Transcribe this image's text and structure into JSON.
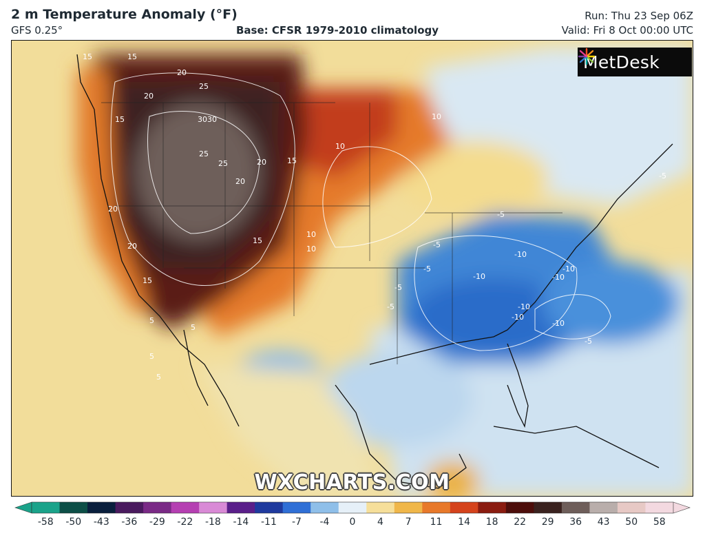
{
  "header": {
    "title": "2 m Temperature Anomaly (°F)",
    "model": "GFS 0.25°",
    "base": "Base: CFSR 1979-2010 climatology",
    "run": "Run: Thu 23 Sep 06Z",
    "valid": "Valid: Fri 8 Oct 00:00 UTC"
  },
  "logo": {
    "text": "MetDesk",
    "icon": "metdesk-burst-icon"
  },
  "watermark": "WXCHARTS.COM",
  "contour_labels": [
    "15",
    "15",
    "20",
    "20",
    "25",
    "3030",
    "25",
    "25",
    "20",
    "20",
    "15",
    "10",
    "10",
    "10",
    "10",
    "15",
    "20",
    "20",
    "15",
    "15",
    "-5",
    "-5",
    "-5",
    "-5",
    "-10",
    "-10",
    "-10",
    "-10",
    "-10",
    "-10",
    "-10",
    "-5",
    "-5",
    "-5",
    "5",
    "5",
    "5",
    "5"
  ],
  "colorbar": {
    "ticks": [
      "-58",
      "-50",
      "-43",
      "-36",
      "-29",
      "-22",
      "-18",
      "-14",
      "-11",
      "-7",
      "-4",
      "0",
      "4",
      "7",
      "11",
      "14",
      "18",
      "22",
      "29",
      "36",
      "43",
      "50",
      "58"
    ],
    "colors": [
      "#1aa38a",
      "#0d4f47",
      "#0a1f3d",
      "#4a1a5e",
      "#7a2a86",
      "#b53fb2",
      "#d98ad6",
      "#5a1f8a",
      "#1f3a9e",
      "#2f6fd6",
      "#8fbfe9",
      "#e6f0f8",
      "#f6df9a",
      "#f0b74a",
      "#e8792a",
      "#d5431c",
      "#8a1c10",
      "#4d0e0b",
      "#3a221f",
      "#6e5e5a",
      "#b9aeab",
      "#e7c9c5",
      "#f3d9e0"
    ]
  }
}
